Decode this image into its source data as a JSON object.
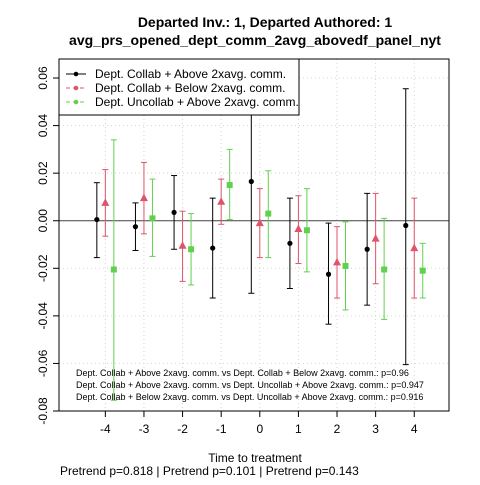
{
  "chart_data": {
    "type": "scatter",
    "title_line1": "Departed Inv.: 1, Departed Authored: 1",
    "title_line2": "avg_prs_opened_dept_comm_2avg_abovedf_panel_nyt",
    "xlabel": "Time to treatment",
    "ylabel": "",
    "x_ticks": [
      "-4",
      "-3",
      "-2",
      "-1",
      "0",
      "1",
      "2",
      "3",
      "4"
    ],
    "x_values": [
      -4,
      -3,
      -2,
      -1,
      0,
      1,
      2,
      3,
      4
    ],
    "y_ticks": [
      -0.08,
      -0.06,
      -0.04,
      -0.02,
      0.0,
      0.02,
      0.04,
      0.06
    ],
    "y_tick_labels": [
      "-0.08",
      "-0.06",
      "-0.04",
      "-0.02",
      "0.00",
      "0.02",
      "0.04",
      "0.06"
    ],
    "ylim": [
      -0.08,
      0.068
    ],
    "xlim": [
      -5.2,
      4.9
    ],
    "grid": true,
    "zero_line": 0,
    "legend_position": "top-left",
    "series": [
      {
        "name": "Dept. Collab + Above 2xavg. comm.",
        "color": "#000000",
        "marker": "circle",
        "offset": -0.22,
        "points": [
          {
            "x": -4,
            "y": 0.0005,
            "lo": -0.0155,
            "hi": 0.016
          },
          {
            "x": -3,
            "y": -0.0025,
            "lo": -0.0125,
            "hi": 0.0075
          },
          {
            "x": -2,
            "y": 0.0035,
            "lo": -0.012,
            "hi": 0.019
          },
          {
            "x": -1,
            "y": -0.0115,
            "lo": -0.0325,
            "hi": 0.0095
          },
          {
            "x": 0,
            "y": 0.0165,
            "lo": -0.0305,
            "hi": 0.0475
          },
          {
            "x": 1,
            "y": -0.0095,
            "lo": -0.0285,
            "hi": 0.0095
          },
          {
            "x": 2,
            "y": -0.0225,
            "lo": -0.0435,
            "hi": -0.001
          },
          {
            "x": 3,
            "y": -0.012,
            "lo": -0.0355,
            "hi": 0.0115
          },
          {
            "x": 4,
            "y": -0.002,
            "lo": -0.0605,
            "hi": 0.0555
          }
        ]
      },
      {
        "name": "Dept. Collab + Below 2xavg. comm.",
        "color": "#DF536B",
        "marker": "triangle",
        "offset": 0.0,
        "points": [
          {
            "x": -4,
            "y": 0.0075,
            "lo": -0.0065,
            "hi": 0.0215
          },
          {
            "x": -3,
            "y": 0.0095,
            "lo": -0.0055,
            "hi": 0.0245
          },
          {
            "x": -2,
            "y": -0.0105,
            "lo": -0.0255,
            "hi": 0.004
          },
          {
            "x": -1,
            "y": 0.008,
            "lo": -0.0015,
            "hi": 0.0175
          },
          {
            "x": 0,
            "y": -0.001,
            "lo": -0.0155,
            "hi": 0.0135
          },
          {
            "x": 1,
            "y": -0.0035,
            "lo": -0.018,
            "hi": 0.0105
          },
          {
            "x": 2,
            "y": -0.0175,
            "lo": -0.0325,
            "hi": -0.0025
          },
          {
            "x": 3,
            "y": -0.0075,
            "lo": -0.0265,
            "hi": 0.0115
          },
          {
            "x": 4,
            "y": -0.0115,
            "lo": -0.0325,
            "hi": 0.0095
          }
        ]
      },
      {
        "name": "Dept. Uncollab + Above 2xavg. comm.",
        "color": "#61D04F",
        "marker": "square",
        "offset": 0.22,
        "points": [
          {
            "x": -4,
            "y": -0.0205,
            "lo": -0.0755,
            "hi": 0.034
          },
          {
            "x": -3,
            "y": 0.001,
            "lo": -0.015,
            "hi": 0.0175
          },
          {
            "x": -2,
            "y": -0.012,
            "lo": -0.027,
            "hi": 0.003
          },
          {
            "x": -1,
            "y": 0.015,
            "lo": 0.0005,
            "hi": 0.03
          },
          {
            "x": 0,
            "y": 0.003,
            "lo": -0.0155,
            "hi": 0.021
          },
          {
            "x": 1,
            "y": -0.004,
            "lo": -0.0215,
            "hi": 0.0135
          },
          {
            "x": 2,
            "y": -0.019,
            "lo": -0.0375,
            "hi": -0.0005
          },
          {
            "x": 3,
            "y": -0.0205,
            "lo": -0.0415,
            "hi": 0.001
          },
          {
            "x": 4,
            "y": -0.021,
            "lo": -0.0325,
            "hi": -0.0095
          }
        ]
      }
    ],
    "annotations": [
      "Dept. Collab + Above 2xavg. comm. vs Dept. Collab + Below 2xavg. comm.: p=0.96",
      "Dept. Collab + Above 2xavg. comm. vs Dept. Uncollab + Above 2xavg. comm.: p=0.947",
      "Dept. Collab + Below 2xavg. comm. vs Dept. Uncollab + Above 2xavg. comm.: p=0.916"
    ],
    "footer": "Pretrend p=0.818 | Pretrend p=0.101 | Pretrend p=0.143"
  }
}
